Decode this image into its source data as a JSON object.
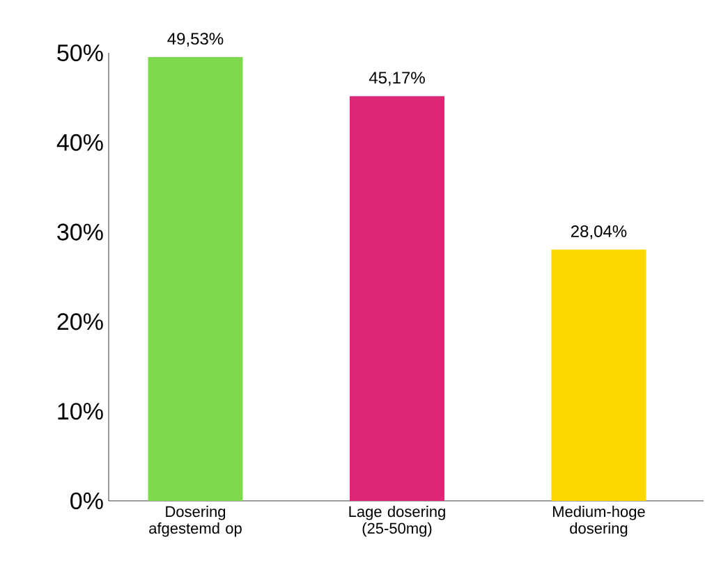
{
  "chart_data": {
    "type": "bar",
    "categories": [
      "Dosering afgestemd op",
      "Lage dosering (25-50mg)",
      "Medium-hoge dosering"
    ],
    "values": [
      49.53,
      45.17,
      28.04
    ],
    "colors": [
      "#7ed94c",
      "#dc2777",
      "#ffd700"
    ],
    "value_labels": [
      "49,53%",
      "45,17%",
      "28,04%"
    ],
    "ylim": [
      0,
      50
    ],
    "yticks": [
      {
        "value": 0,
        "label": "0%"
      },
      {
        "value": 10,
        "label": "10%"
      },
      {
        "value": 20,
        "label": "20%"
      },
      {
        "value": 30,
        "label": "30%"
      },
      {
        "value": 40,
        "label": "40%"
      },
      {
        "value": 50,
        "label": "50%"
      }
    ],
    "grid": false,
    "legend": false
  }
}
